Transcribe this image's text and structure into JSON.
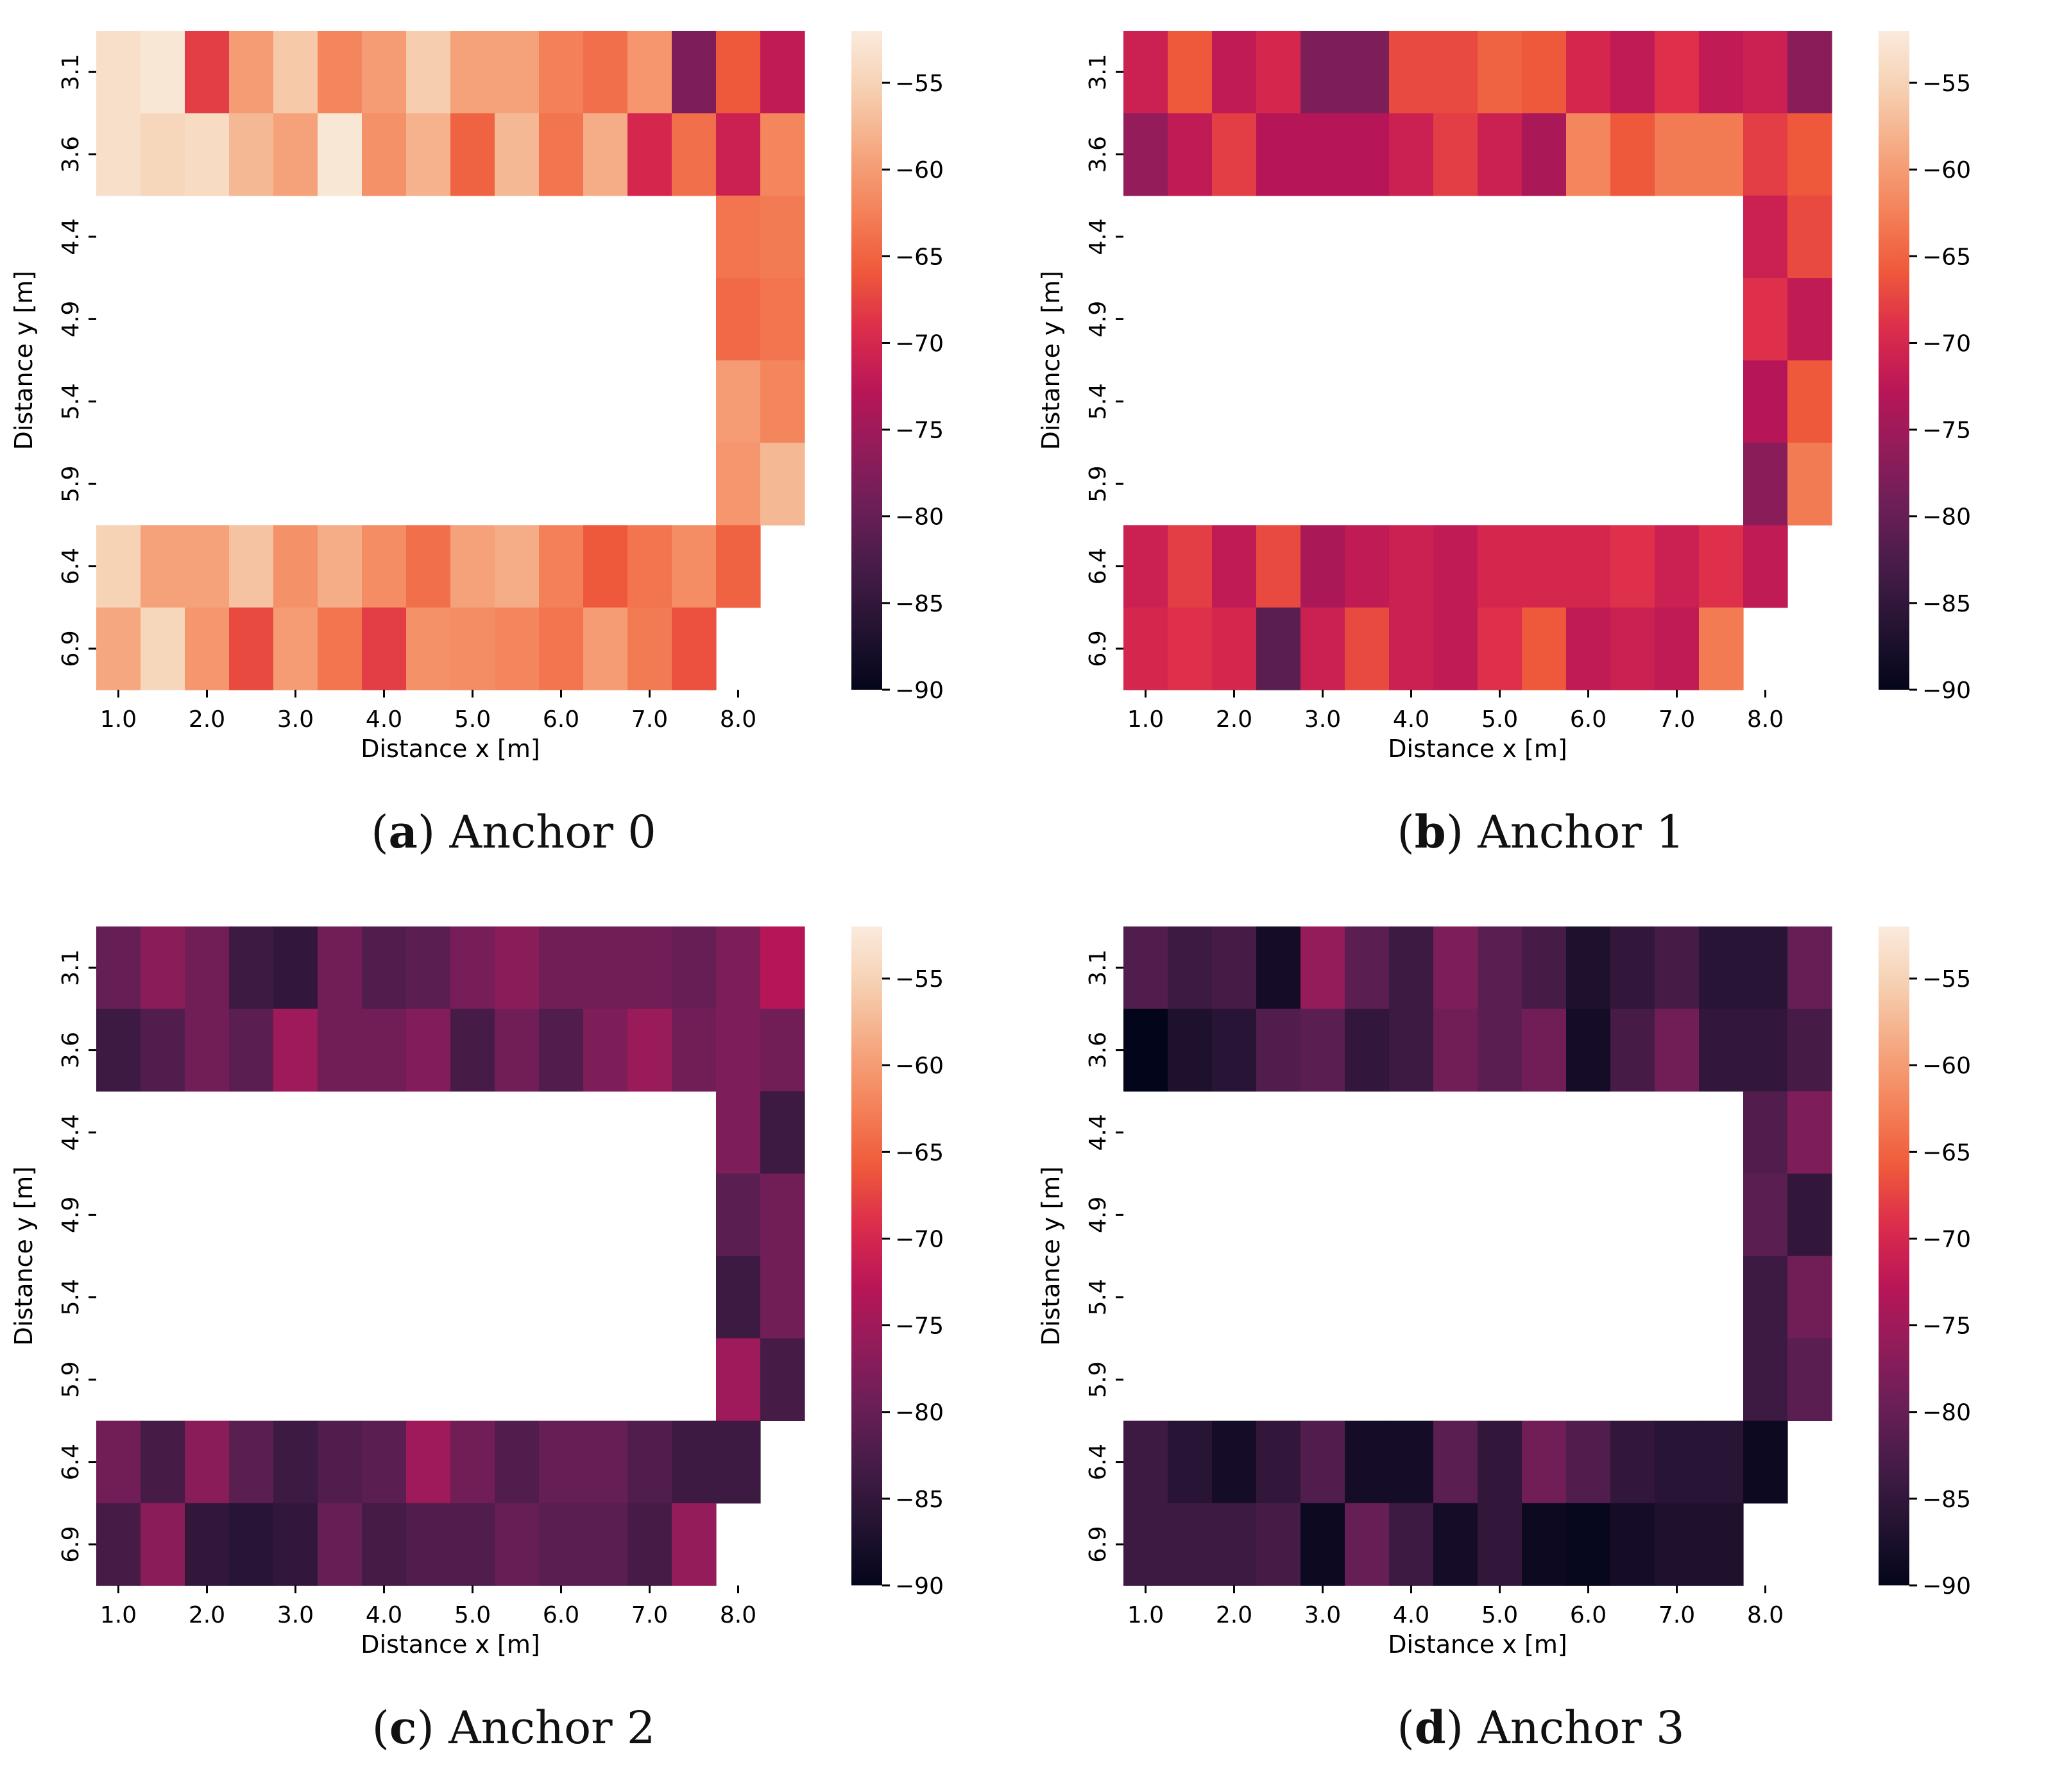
{
  "colormap": {
    "name": "rocket",
    "stops": [
      "#03051a",
      "#221331",
      "#451c47",
      "#6a1f56",
      "#921c5b",
      "#b91657",
      "#dc2c4c",
      "#ef5a3a",
      "#f4825a",
      "#f5a881",
      "#f6cfb0",
      "#faebdd"
    ]
  },
  "panels": [
    {
      "id": "a",
      "letter": "a",
      "title": "Anchor 0"
    },
    {
      "id": "b",
      "letter": "b",
      "title": "Anchor 1"
    },
    {
      "id": "c",
      "letter": "c",
      "title": "Anchor 2"
    },
    {
      "id": "d",
      "letter": "d",
      "title": "Anchor 3"
    }
  ],
  "chart_data": [
    {
      "type": "heatmap",
      "title": "Anchor 0",
      "xlabel": "Distance x [m]",
      "ylabel": "Distance y [m]",
      "x_tick_labels": [
        "1.0",
        "2.0",
        "3.0",
        "4.0",
        "5.0",
        "6.0",
        "7.0",
        "8.0"
      ],
      "y_tick_labels": [
        "3.1",
        "3.6",
        "4.4",
        "4.9",
        "5.4",
        "5.9",
        "6.4",
        "6.9"
      ],
      "colorbar_ticks": [
        -55,
        -60,
        -65,
        -70,
        -75,
        -80,
        -85,
        -90
      ],
      "vmin": -90,
      "vmax": -52,
      "values": [
        [
          -53.5,
          -52.5,
          -68,
          -60,
          -56,
          -62,
          -60,
          -55.5,
          -59.5,
          -59.5,
          -62.5,
          -64,
          -60.5,
          -78,
          -66,
          -72
        ],
        [
          -53.5,
          -54.5,
          -54,
          -57.5,
          -59.5,
          -52.5,
          -61,
          -58,
          -65,
          -57.5,
          -63.5,
          -58.5,
          -70,
          -64,
          -71,
          -62
        ],
        [
          null,
          null,
          null,
          null,
          null,
          null,
          null,
          null,
          null,
          null,
          null,
          null,
          null,
          null,
          -63.5,
          -63
        ],
        [
          null,
          null,
          null,
          null,
          null,
          null,
          null,
          null,
          null,
          null,
          null,
          null,
          null,
          null,
          -64.5,
          -63.5
        ],
        [
          null,
          null,
          null,
          null,
          null,
          null,
          null,
          null,
          null,
          null,
          null,
          null,
          null,
          null,
          -60,
          -62
        ],
        [
          null,
          null,
          null,
          null,
          null,
          null,
          null,
          null,
          null,
          null,
          null,
          null,
          null,
          null,
          -60.5,
          -57.5
        ],
        [
          -55,
          -59.5,
          -59.5,
          -56.5,
          -61,
          -58.5,
          -61.5,
          -64,
          -59.5,
          -58.5,
          -62.5,
          -66,
          -63.5,
          -61.5,
          -65,
          null
        ],
        [
          -59,
          -54.5,
          -60.5,
          -67,
          -60,
          -63.5,
          -68,
          -61,
          -61.5,
          -62,
          -63.5,
          -60,
          -63,
          -66.5,
          null,
          null
        ]
      ]
    },
    {
      "type": "heatmap",
      "title": "Anchor 1",
      "xlabel": "Distance x [m]",
      "ylabel": "Distance y [m]",
      "x_tick_labels": [
        "1.0",
        "2.0",
        "3.0",
        "4.0",
        "5.0",
        "6.0",
        "7.0",
        "8.0"
      ],
      "y_tick_labels": [
        "3.1",
        "3.6",
        "4.4",
        "4.9",
        "5.4",
        "5.9",
        "6.4",
        "6.9"
      ],
      "colorbar_ticks": [
        -55,
        -60,
        -65,
        -70,
        -75,
        -80,
        -85,
        -90
      ],
      "vmin": -90,
      "vmax": -52,
      "values": [
        [
          -71,
          -66,
          -72,
          -70,
          -78,
          -78,
          -67,
          -67,
          -65,
          -66,
          -70,
          -72,
          -69,
          -72,
          -71,
          -77
        ],
        [
          -76,
          -72,
          -68,
          -73,
          -73,
          -73,
          -71,
          -68,
          -71,
          -74,
          -62,
          -66,
          -63,
          -63,
          -68,
          -66
        ],
        [
          null,
          null,
          null,
          null,
          null,
          null,
          null,
          null,
          null,
          null,
          null,
          null,
          null,
          null,
          -71,
          -67
        ],
        [
          null,
          null,
          null,
          null,
          null,
          null,
          null,
          null,
          null,
          null,
          null,
          null,
          null,
          null,
          -69,
          -72
        ],
        [
          null,
          null,
          null,
          null,
          null,
          null,
          null,
          null,
          null,
          null,
          null,
          null,
          null,
          null,
          -73,
          -66
        ],
        [
          null,
          null,
          null,
          null,
          null,
          null,
          null,
          null,
          null,
          null,
          null,
          null,
          null,
          null,
          -77,
          -63
        ],
        [
          -71,
          -68,
          -72,
          -67,
          -74,
          -72,
          -71,
          -72,
          -70,
          -70,
          -70,
          -69,
          -71,
          -69,
          -72,
          null
        ],
        [
          -70,
          -69,
          -70,
          -81,
          -71,
          -67,
          -71,
          -72,
          -69,
          -66,
          -72,
          -71,
          -72,
          -63,
          null,
          null
        ]
      ]
    },
    {
      "type": "heatmap",
      "title": "Anchor 2",
      "xlabel": "Distance x [m]",
      "ylabel": "Distance y [m]",
      "x_tick_labels": [
        "1.0",
        "2.0",
        "3.0",
        "4.0",
        "5.0",
        "6.0",
        "7.0",
        "8.0"
      ],
      "y_tick_labels": [
        "3.1",
        "3.6",
        "4.4",
        "4.9",
        "5.4",
        "5.9",
        "6.4",
        "6.9"
      ],
      "colorbar_ticks": [
        -55,
        -60,
        -65,
        -70,
        -75,
        -80,
        -85,
        -90
      ],
      "vmin": -90,
      "vmax": -52,
      "values": [
        [
          -80,
          -77,
          -79,
          -84,
          -85,
          -79,
          -82,
          -81,
          -78.5,
          -77,
          -79,
          -79,
          -79,
          -80,
          -78,
          -73
        ],
        [
          -84,
          -82,
          -79,
          -81,
          -75,
          -79,
          -79,
          -77.5,
          -83,
          -79,
          -82,
          -78,
          -75.5,
          -79,
          -78,
          -79
        ],
        [
          null,
          null,
          null,
          null,
          null,
          null,
          null,
          null,
          null,
          null,
          null,
          null,
          null,
          null,
          -78,
          -84
        ],
        [
          null,
          null,
          null,
          null,
          null,
          null,
          null,
          null,
          null,
          null,
          null,
          null,
          null,
          null,
          -81,
          -79
        ],
        [
          null,
          null,
          null,
          null,
          null,
          null,
          null,
          null,
          null,
          null,
          null,
          null,
          null,
          null,
          -84,
          -79
        ],
        [
          null,
          null,
          null,
          null,
          null,
          null,
          null,
          null,
          null,
          null,
          null,
          null,
          null,
          null,
          -75,
          -83
        ],
        [
          -79,
          -83,
          -77,
          -81,
          -84,
          -82,
          -81,
          -75,
          -79,
          -82,
          -80,
          -80,
          -82,
          -84,
          -84,
          null
        ],
        [
          -83,
          -77,
          -85,
          -86,
          -85,
          -80,
          -83,
          -82,
          -82,
          -80,
          -81,
          -81,
          -83,
          -76,
          null,
          null
        ]
      ]
    },
    {
      "type": "heatmap",
      "title": "Anchor 3",
      "xlabel": "Distance x [m]",
      "ylabel": "Distance y [m]",
      "x_tick_labels": [
        "1.0",
        "2.0",
        "3.0",
        "4.0",
        "5.0",
        "6.0",
        "7.0",
        "8.0"
      ],
      "y_tick_labels": [
        "3.1",
        "3.6",
        "4.4",
        "4.9",
        "5.4",
        "5.9",
        "6.4",
        "6.9"
      ],
      "colorbar_ticks": [
        -55,
        -60,
        -65,
        -70,
        -75,
        -80,
        -85,
        -90
      ],
      "vmin": -90,
      "vmax": -52,
      "values": [
        [
          -82,
          -84,
          -83,
          -88,
          -76,
          -81,
          -84,
          -78,
          -81,
          -83,
          -87,
          -85,
          -83,
          -86,
          -86,
          -80
        ],
        [
          -90,
          -87,
          -86,
          -82,
          -81,
          -85,
          -84,
          -79,
          -81,
          -79,
          -88,
          -83,
          -79,
          -85,
          -85,
          -83
        ],
        [
          null,
          null,
          null,
          null,
          null,
          null,
          null,
          null,
          null,
          null,
          null,
          null,
          null,
          null,
          -82,
          -78
        ],
        [
          null,
          null,
          null,
          null,
          null,
          null,
          null,
          null,
          null,
          null,
          null,
          null,
          null,
          null,
          -81,
          -85
        ],
        [
          null,
          null,
          null,
          null,
          null,
          null,
          null,
          null,
          null,
          null,
          null,
          null,
          null,
          null,
          -84,
          -79
        ],
        [
          null,
          null,
          null,
          null,
          null,
          null,
          null,
          null,
          null,
          null,
          null,
          null,
          null,
          null,
          -84,
          -81
        ],
        [
          -84,
          -86,
          -88,
          -85,
          -82,
          -88,
          -88,
          -81,
          -85,
          -79,
          -82,
          -85,
          -86,
          -86,
          -89,
          null
        ],
        [
          -84,
          -84,
          -84,
          -83,
          -89,
          -80,
          -84,
          -88,
          -85,
          -89,
          -89.5,
          -88,
          -87,
          -87,
          null,
          null
        ]
      ]
    }
  ]
}
